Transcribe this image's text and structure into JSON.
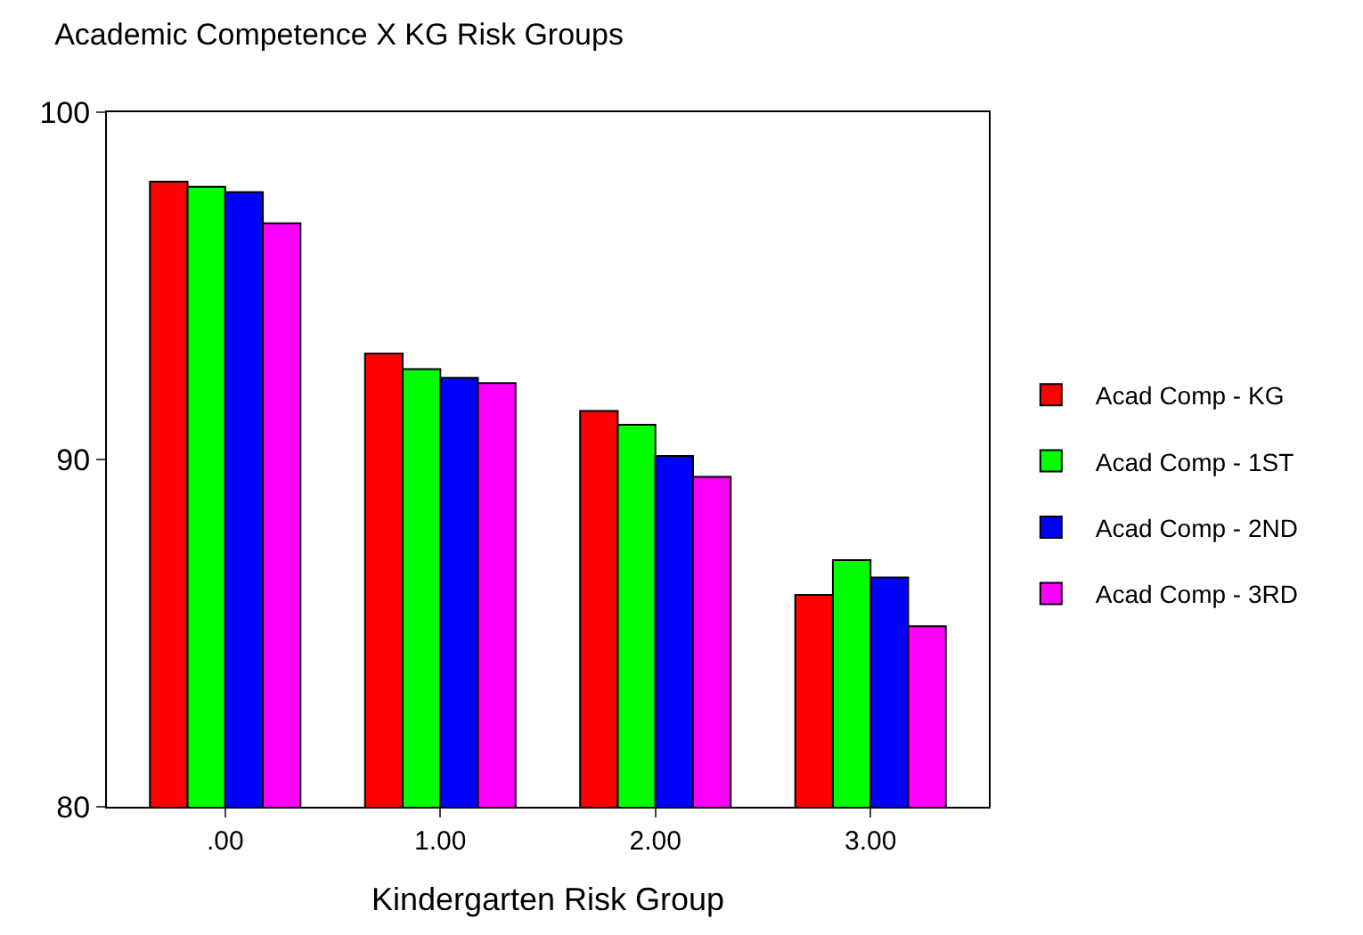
{
  "chart_data": {
    "type": "bar",
    "title": "Academic Competence X KG Risk Groups",
    "xlabel": "Kindergarten Risk Group",
    "categories": [
      ".00",
      "1.00",
      "2.00",
      "3.00"
    ],
    "series": [
      {
        "name": "Acad Comp - KG",
        "color": "#ff0000",
        "values": [
          98.0,
          93.05,
          91.4,
          86.1
        ]
      },
      {
        "name": "Acad Comp - 1ST",
        "color": "#00ff00",
        "values": [
          97.85,
          92.6,
          91.0,
          87.1
        ]
      },
      {
        "name": "Acad Comp - 2ND",
        "color": "#0000ff",
        "values": [
          97.7,
          92.35,
          90.1,
          86.6
        ]
      },
      {
        "name": "Acad Comp - 3RD",
        "color": "#ff00ff",
        "values": [
          96.8,
          92.2,
          89.5,
          85.2
        ]
      }
    ],
    "ylim": [
      80,
      100
    ],
    "yticks": [
      80,
      90,
      100
    ],
    "grid": false,
    "legend": "right"
  }
}
